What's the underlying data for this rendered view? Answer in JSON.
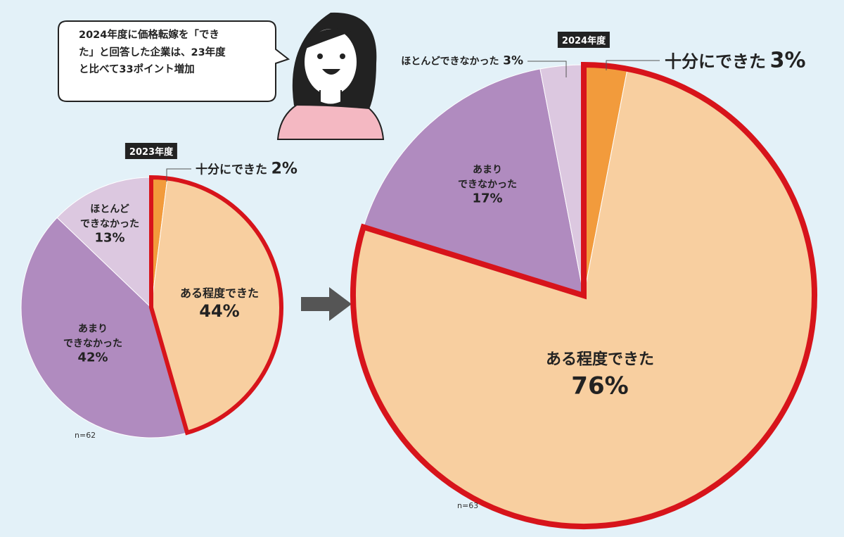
{
  "callout": "2024年度に価格転嫁を「でき\nた」と回答した企業は、23年度\nと比べて33ポイント増加",
  "chart_data": [
    {
      "type": "pie",
      "title": "2023年度",
      "note": "n=62",
      "categories": [
        "十分にできた",
        "ある程度できた",
        "あまり\nできなかった",
        "ほとんど\nできなかった"
      ],
      "values": [
        2,
        44,
        42,
        13
      ],
      "value_labels": [
        "2%",
        "44%",
        "42%",
        "13%"
      ],
      "colors": [
        "#f29b3c",
        "#f8cfa0",
        "#b08bbf",
        "#dcc8e0"
      ],
      "highlight_color": "#d7141b"
    },
    {
      "type": "pie",
      "title": "2024年度",
      "note": "n=63",
      "categories": [
        "十分にできた",
        "ある程度できた",
        "あまり\nできなかった",
        "ほとんどできなかった"
      ],
      "values": [
        3,
        76,
        17,
        3
      ],
      "value_labels": [
        "3%",
        "76%",
        "17%",
        "3%"
      ],
      "colors": [
        "#f29b3c",
        "#f8cfa0",
        "#b08bbf",
        "#dcc8e0"
      ],
      "highlight_color": "#d7141b"
    }
  ]
}
